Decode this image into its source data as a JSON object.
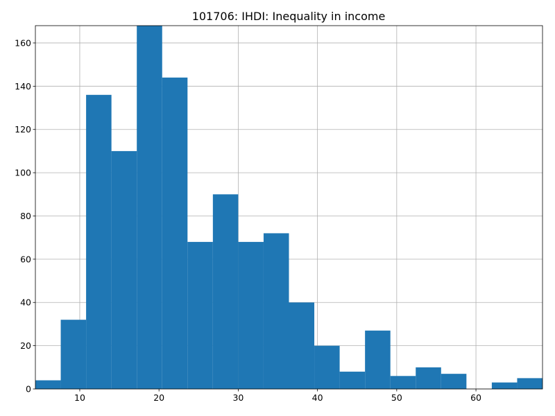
{
  "chart_data": {
    "type": "bar",
    "title": "101706: IHDI: Inequality in income",
    "xlabel": "",
    "ylabel": "",
    "grid": true,
    "legend": "none",
    "bar_color": "#1f77b4",
    "xlim": [
      4.4,
      68.4
    ],
    "ylim": [
      0,
      168
    ],
    "x_ticks": [
      10,
      20,
      30,
      40,
      50,
      60
    ],
    "y_ticks": [
      0,
      20,
      40,
      60,
      80,
      100,
      120,
      140,
      160
    ],
    "bins": [
      {
        "x0": 4.4,
        "x1": 7.6,
        "value": 4
      },
      {
        "x0": 7.6,
        "x1": 10.8,
        "value": 32
      },
      {
        "x0": 10.8,
        "x1": 14.0,
        "value": 136
      },
      {
        "x0": 14.0,
        "x1": 17.2,
        "value": 110
      },
      {
        "x0": 17.2,
        "x1": 20.4,
        "value": 168
      },
      {
        "x0": 20.4,
        "x1": 23.6,
        "value": 144
      },
      {
        "x0": 23.6,
        "x1": 26.8,
        "value": 68
      },
      {
        "x0": 26.8,
        "x1": 30.0,
        "value": 90
      },
      {
        "x0": 30.0,
        "x1": 33.2,
        "value": 68
      },
      {
        "x0": 33.2,
        "x1": 36.4,
        "value": 72
      },
      {
        "x0": 36.4,
        "x1": 39.6,
        "value": 40
      },
      {
        "x0": 39.6,
        "x1": 42.8,
        "value": 20
      },
      {
        "x0": 42.8,
        "x1": 46.0,
        "value": 8
      },
      {
        "x0": 46.0,
        "x1": 49.2,
        "value": 27
      },
      {
        "x0": 49.2,
        "x1": 52.4,
        "value": 6
      },
      {
        "x0": 52.4,
        "x1": 55.6,
        "value": 10
      },
      {
        "x0": 55.6,
        "x1": 58.8,
        "value": 7
      },
      {
        "x0": 58.8,
        "x1": 62.0,
        "value": 0
      },
      {
        "x0": 62.0,
        "x1": 65.2,
        "value": 3
      },
      {
        "x0": 65.2,
        "x1": 68.4,
        "value": 5
      }
    ]
  }
}
